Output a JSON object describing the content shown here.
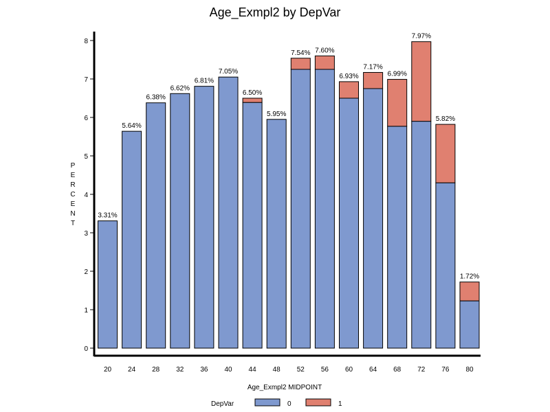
{
  "chart_data": {
    "type": "bar",
    "stacked": true,
    "title": "Age_Exmpl2  by  DepVar",
    "xlabel": "Age_Exmpl2 MIDPOINT",
    "ylabel_letters": [
      "P",
      "E",
      "R",
      "C",
      "E",
      "N",
      "T"
    ],
    "ylim": [
      0,
      8
    ],
    "yticks": [
      "0",
      "1",
      "2",
      "3",
      "4",
      "5",
      "6",
      "7",
      "8"
    ],
    "categories": [
      "20",
      "24",
      "28",
      "32",
      "36",
      "40",
      "44",
      "48",
      "52",
      "56",
      "60",
      "64",
      "68",
      "72",
      "76",
      "80"
    ],
    "series": [
      {
        "name": "0",
        "color": "#7f99cf",
        "values": [
          3.31,
          5.64,
          6.38,
          6.62,
          6.81,
          7.05,
          6.39,
          5.95,
          7.25,
          7.25,
          6.5,
          6.75,
          5.77,
          5.9,
          4.3,
          1.23
        ]
      },
      {
        "name": "1",
        "color": "#e08070",
        "values": [
          0,
          0,
          0,
          0,
          0,
          0,
          0.11,
          0,
          0.29,
          0.35,
          0.43,
          0.42,
          1.22,
          2.07,
          1.52,
          0.49
        ]
      }
    ],
    "data_labels": [
      "3.31%",
      "5.64%",
      "6.38%",
      "6.62%",
      "6.81%",
      "7.05%",
      "6.50%",
      "5.95%",
      "7.54%",
      "7.60%",
      "6.93%",
      "7.17%",
      "6.99%",
      "7.97%",
      "5.82%",
      "1.72%"
    ],
    "totals": [
      3.31,
      5.64,
      6.38,
      6.62,
      6.81,
      7.05,
      6.5,
      5.95,
      7.54,
      7.6,
      6.93,
      7.17,
      6.99,
      7.97,
      5.82,
      1.72
    ],
    "legend": {
      "title": "DepVar",
      "position": "bottom",
      "labels": [
        "0",
        "1"
      ]
    }
  }
}
